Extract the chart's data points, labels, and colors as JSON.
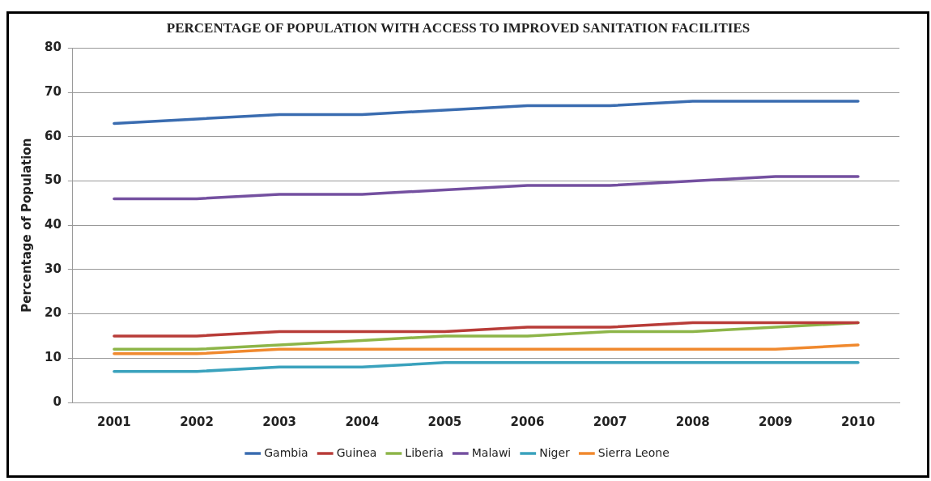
{
  "chart_data": {
    "type": "line",
    "title": "PERCENTAGE OF POPULATION WITH ACCESS TO IMPROVED SANITATION FACILITIES",
    "ylabel": "Percentage of Population",
    "categories": [
      "2001",
      "2002",
      "2003",
      "2004",
      "2005",
      "2006",
      "2007",
      "2008",
      "2009",
      "2010"
    ],
    "series": [
      {
        "name": "Gambia",
        "color": "#3a6cb0",
        "values": [
          63,
          64,
          65,
          65,
          66,
          67,
          67,
          68,
          68,
          68
        ]
      },
      {
        "name": "Guinea",
        "color": "#b83c38",
        "values": [
          15,
          15,
          16,
          16,
          16,
          17,
          17,
          18,
          18,
          18
        ]
      },
      {
        "name": "Liberia",
        "color": "#8db548",
        "values": [
          12,
          12,
          13,
          14,
          15,
          15,
          16,
          16,
          17,
          18
        ]
      },
      {
        "name": "Malawi",
        "color": "#7450a0",
        "values": [
          46,
          46,
          47,
          47,
          48,
          49,
          49,
          50,
          51,
          51
        ]
      },
      {
        "name": "Niger",
        "color": "#3aa2bd",
        "values": [
          7,
          7,
          8,
          8,
          9,
          9,
          9,
          9,
          9,
          9
        ]
      },
      {
        "name": "Sierra Leone",
        "color": "#f0892e",
        "values": [
          11,
          11,
          12,
          12,
          12,
          12,
          12,
          12,
          12,
          13
        ]
      }
    ],
    "ylim": [
      0,
      80
    ],
    "yticks": [
      0,
      10,
      20,
      30,
      40,
      50,
      60,
      70,
      80
    ],
    "grid": "y",
    "legend": "bottom",
    "marker": "none",
    "line_style": "solid"
  }
}
